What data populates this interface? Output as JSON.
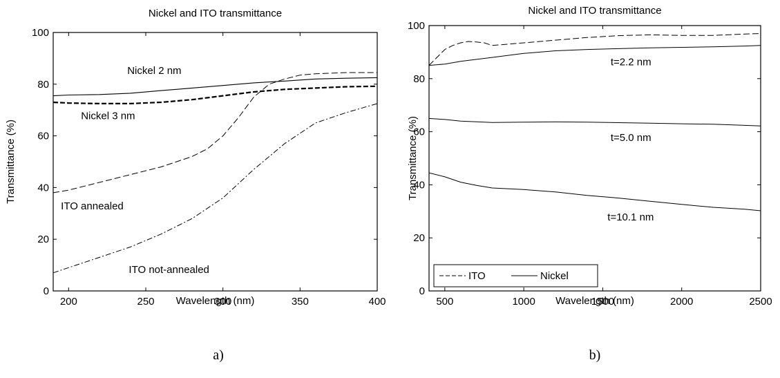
{
  "chart_data": [
    {
      "type": "line",
      "panel_label": "a)",
      "title": "Nickel and ITO transmittance",
      "xlabel": "Wavelength (nm)",
      "ylabel": "Transmittance (%)",
      "xlim": [
        190,
        400
      ],
      "ylim": [
        0,
        100
      ],
      "xticks": [
        200,
        250,
        300,
        350,
        400
      ],
      "yticks": [
        0,
        20,
        40,
        60,
        80,
        100
      ],
      "grid": false,
      "series": [
        {
          "key": "nickel2",
          "style": "solid",
          "width": 1.1,
          "x": [
            190,
            200,
            220,
            240,
            260,
            280,
            300,
            320,
            340,
            360,
            380,
            400
          ],
          "y": [
            75.5,
            75.8,
            76,
            76.5,
            77.5,
            78.5,
            79.5,
            80.5,
            81.2,
            82,
            82.3,
            82.5
          ]
        },
        {
          "key": "nickel3",
          "style": "dashed-bold",
          "width": 2.2,
          "x": [
            190,
            200,
            220,
            240,
            260,
            280,
            300,
            320,
            340,
            360,
            380,
            400
          ],
          "y": [
            73,
            72.7,
            72.5,
            72.5,
            73,
            74,
            75.5,
            77,
            78,
            78.5,
            79,
            79.2
          ]
        },
        {
          "key": "ito_annealed",
          "style": "dashed",
          "width": 1,
          "x": [
            190,
            200,
            220,
            240,
            260,
            280,
            290,
            300,
            310,
            320,
            330,
            340,
            350,
            360,
            380,
            400
          ],
          "y": [
            38,
            39,
            42,
            45,
            48,
            52,
            55,
            60,
            67,
            75,
            80,
            82,
            83.5,
            84,
            84.5,
            84.5
          ]
        },
        {
          "key": "ito_not_annealed",
          "style": "dashdot",
          "width": 1,
          "x": [
            190,
            200,
            220,
            240,
            260,
            280,
            300,
            320,
            330,
            340,
            360,
            380,
            400
          ],
          "y": [
            7,
            9,
            13,
            17,
            22,
            28,
            36,
            47,
            52,
            57,
            65,
            69,
            72.5
          ]
        }
      ],
      "annotations": [
        {
          "text": "Nickel 2 nm",
          "x": 238,
          "y": 84
        },
        {
          "text": "Nickel 3 nm",
          "x": 208,
          "y": 66.5
        },
        {
          "text": "ITO annealed",
          "x": 195,
          "y": 31.5
        },
        {
          "text": "ITO not-annealed",
          "x": 239,
          "y": 7
        }
      ]
    },
    {
      "type": "line",
      "panel_label": "b)",
      "title": "Nickel and ITO transmittance",
      "xlabel": "Wavelength (nm)",
      "ylabel": "Transmittance (%)",
      "xlim": [
        400,
        2500
      ],
      "ylim": [
        0,
        100
      ],
      "xticks": [
        500,
        1000,
        1500,
        2000,
        2500
      ],
      "yticks": [
        0,
        20,
        40,
        60,
        80,
        100
      ],
      "grid": false,
      "legend": {
        "position": "bottom-left",
        "entries": [
          {
            "label": "ITO",
            "style": "dashed"
          },
          {
            "label": "Nickel",
            "style": "solid"
          }
        ]
      },
      "series": [
        {
          "key": "ito",
          "style": "dashed",
          "width": 1,
          "x": [
            400,
            450,
            500,
            550,
            600,
            650,
            700,
            750,
            800,
            900,
            1000,
            1200,
            1400,
            1600,
            1800,
            2000,
            2200,
            2400,
            2500
          ],
          "y": [
            85,
            88,
            91,
            92.5,
            93.5,
            94,
            93.8,
            93.5,
            92.5,
            93,
            93.5,
            94.5,
            95.5,
            96.2,
            96.5,
            96.3,
            96.3,
            96.8,
            97
          ]
        },
        {
          "key": "nickel_2_2",
          "style": "solid",
          "width": 1,
          "x": [
            400,
            500,
            600,
            800,
            1000,
            1200,
            1400,
            1600,
            1800,
            2000,
            2200,
            2400,
            2500
          ],
          "y": [
            85,
            85.5,
            86.5,
            88,
            89.5,
            90.5,
            91,
            91.3,
            91.6,
            91.8,
            92,
            92.3,
            92.5
          ]
        },
        {
          "key": "nickel_5_0",
          "style": "solid",
          "width": 1,
          "x": [
            400,
            500,
            600,
            800,
            1000,
            1200,
            1400,
            1600,
            1800,
            2000,
            2200,
            2400,
            2500
          ],
          "y": [
            65,
            64.6,
            64,
            63.5,
            63.6,
            63.7,
            63.6,
            63.4,
            63.2,
            63,
            62.8,
            62.4,
            62.2
          ]
        },
        {
          "key": "nickel_10_1",
          "style": "solid",
          "width": 1,
          "x": [
            400,
            500,
            600,
            700,
            800,
            1000,
            1200,
            1400,
            1600,
            1800,
            2000,
            2200,
            2400,
            2500
          ],
          "y": [
            44.5,
            43,
            41,
            39.8,
            38.8,
            38.2,
            37.3,
            36,
            35,
            33.8,
            32.6,
            31.5,
            30.8,
            30.2
          ]
        }
      ],
      "annotations": [
        {
          "text": "t=2.2 nm",
          "x": 1550,
          "y": 85
        },
        {
          "text": "t=5.0 nm",
          "x": 1550,
          "y": 56.5
        },
        {
          "text": "t=10.1 nm",
          "x": 1530,
          "y": 26.5
        }
      ]
    }
  ]
}
